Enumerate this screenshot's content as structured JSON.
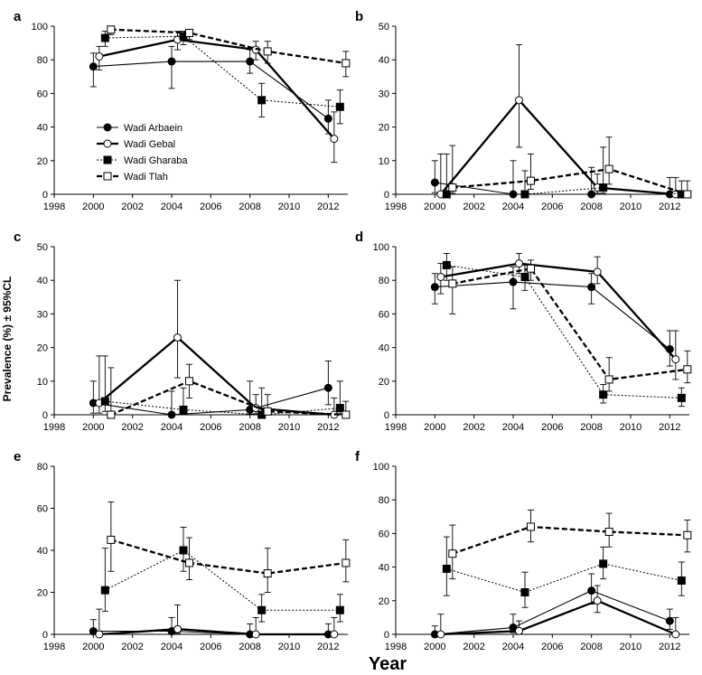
{
  "figure": {
    "ylabel": "Prevalence (%) ± 95%CL",
    "xlabel": "Year"
  },
  "legend": [
    {
      "name": "Wadi Arbaein",
      "marker": "filled-circle",
      "line": "thin-solid"
    },
    {
      "name": "Wadi Gebal",
      "marker": "open-circle",
      "line": "thick-solid"
    },
    {
      "name": "Wadi Gharaba",
      "marker": "filled-square",
      "line": "thin-dotted"
    },
    {
      "name": "Wadi Tlah",
      "marker": "open-square",
      "line": "thick-dashed"
    }
  ],
  "chart_data": [
    {
      "label": "a",
      "type": "line",
      "x_ticks": [
        "1998",
        "2000",
        "2002",
        "2004",
        "2006",
        "2008",
        "2010",
        "2012"
      ],
      "xlim": [
        1998,
        2013
      ],
      "ylim": [
        0,
        100
      ],
      "y_ticks": [
        "0",
        "20",
        "40",
        "60",
        "80",
        "100"
      ],
      "series": [
        {
          "name": "Wadi Arbaein",
          "x": [
            2000,
            2004,
            2008,
            2012
          ],
          "y": [
            76,
            79,
            79,
            45
          ],
          "ylo": [
            64,
            63,
            72,
            36
          ],
          "yhi": [
            84,
            88,
            86,
            56
          ]
        },
        {
          "name": "Wadi Gebal",
          "x": [
            2000.3,
            2004.3,
            2008.3,
            2012.3
          ],
          "y": [
            82,
            92,
            86,
            33
          ],
          "ylo": [
            74,
            86,
            80,
            19
          ],
          "yhi": [
            88,
            97,
            91,
            49
          ]
        },
        {
          "name": "Wadi Gharaba",
          "x": [
            2000.6,
            2004.6,
            2008.6,
            2012.6
          ],
          "y": [
            93,
            94,
            56,
            52
          ],
          "ylo": [
            88,
            89,
            46,
            42
          ],
          "yhi": [
            97,
            97,
            66,
            62
          ]
        },
        {
          "name": "Wadi Tlah",
          "x": [
            2000.9,
            2004.9,
            2008.9,
            2012.9
          ],
          "y": [
            98,
            96,
            85,
            78
          ],
          "ylo": [
            95,
            92,
            78,
            70
          ],
          "yhi": [
            99,
            98,
            91,
            85
          ]
        }
      ]
    },
    {
      "label": "b",
      "type": "line",
      "x_ticks": [
        "1998",
        "2000",
        "2002",
        "2004",
        "2006",
        "2008",
        "2010",
        "2012"
      ],
      "xlim": [
        1998,
        2013
      ],
      "ylim": [
        0,
        50
      ],
      "y_ticks": [
        "0",
        "10",
        "20",
        "30",
        "40",
        "50"
      ],
      "series": [
        {
          "name": "Wadi Arbaein",
          "x": [
            2000,
            2004,
            2008,
            2012
          ],
          "y": [
            3.5,
            0,
            0,
            0
          ],
          "ylo": [
            0.5,
            0,
            0,
            0
          ],
          "yhi": [
            10,
            10,
            8,
            5
          ]
        },
        {
          "name": "Wadi Gebal",
          "x": [
            2000.3,
            2004.3,
            2008.3,
            2012.3
          ],
          "y": [
            0,
            28,
            2,
            0
          ],
          "ylo": [
            0,
            14,
            0.3,
            0
          ],
          "yhi": [
            12,
            44.5,
            6,
            5
          ]
        },
        {
          "name": "Wadi Gharaba",
          "x": [
            2000.6,
            2004.6,
            2008.6,
            2012.6
          ],
          "y": [
            0,
            0,
            2,
            0
          ],
          "ylo": [
            0,
            0,
            0.3,
            0
          ],
          "yhi": [
            12,
            7,
            14,
            4
          ]
        },
        {
          "name": "Wadi Tlah",
          "x": [
            2000.9,
            2004.9,
            2008.9,
            2012.9
          ],
          "y": [
            2,
            4,
            7.5,
            0
          ],
          "ylo": [
            0.3,
            1.5,
            3,
            0
          ],
          "yhi": [
            14.5,
            12,
            17,
            4
          ]
        }
      ]
    },
    {
      "label": "c",
      "type": "line",
      "x_ticks": [
        "1998",
        "2000",
        "2002",
        "2004",
        "2006",
        "2008",
        "2010",
        "2012"
      ],
      "xlim": [
        1998,
        2013
      ],
      "ylim": [
        0,
        50
      ],
      "y_ticks": [
        "0",
        "10",
        "20",
        "30",
        "40",
        "50"
      ],
      "series": [
        {
          "name": "Wadi Arbaein",
          "x": [
            2000,
            2004,
            2008,
            2012
          ],
          "y": [
            3.5,
            0,
            1.5,
            8
          ],
          "ylo": [
            0.5,
            0,
            0.2,
            3
          ],
          "yhi": [
            10,
            7,
            10,
            16
          ]
        },
        {
          "name": "Wadi Gebal",
          "x": [
            2000.3,
            2004.3,
            2008.3,
            2012.3
          ],
          "y": [
            3.5,
            23,
            2,
            0
          ],
          "ylo": [
            0.5,
            11,
            0.3,
            0
          ],
          "yhi": [
            17.5,
            40,
            6,
            5
          ]
        },
        {
          "name": "Wadi Gharaba",
          "x": [
            2000.6,
            2004.6,
            2008.6,
            2012.6
          ],
          "y": [
            4,
            1.5,
            0,
            2
          ],
          "ylo": [
            1,
            0.2,
            0,
            0.3
          ],
          "yhi": [
            17.5,
            8,
            8,
            10
          ]
        },
        {
          "name": "Wadi Tlah",
          "x": [
            2000.9,
            2004.9,
            2008.9,
            2012.9
          ],
          "y": [
            0,
            10,
            1,
            0
          ],
          "ylo": [
            0,
            5,
            0.1,
            0
          ],
          "yhi": [
            14,
            15,
            6,
            4
          ]
        }
      ]
    },
    {
      "label": "d",
      "type": "line",
      "x_ticks": [
        "1998",
        "2000",
        "2002",
        "2004",
        "2006",
        "2008",
        "2010",
        "2012"
      ],
      "xlim": [
        1998,
        2013
      ],
      "ylim": [
        0,
        100
      ],
      "y_ticks": [
        "0",
        "20",
        "40",
        "60",
        "80",
        "100"
      ],
      "series": [
        {
          "name": "Wadi Arbaein",
          "x": [
            2000,
            2004,
            2008,
            2012
          ],
          "y": [
            76,
            79,
            76,
            39
          ],
          "ylo": [
            66,
            63,
            66,
            29
          ],
          "yhi": [
            84,
            88,
            84,
            50
          ]
        },
        {
          "name": "Wadi Gebal",
          "x": [
            2000.3,
            2004.3,
            2008.3,
            2012.3
          ],
          "y": [
            82,
            90,
            85,
            33
          ],
          "ylo": [
            72,
            84,
            78,
            21
          ],
          "yhi": [
            90,
            96,
            94,
            50
          ]
        },
        {
          "name": "Wadi Gharaba",
          "x": [
            2000.6,
            2004.6,
            2008.6,
            2012.6
          ],
          "y": [
            89,
            82,
            12,
            10
          ],
          "ylo": [
            80,
            74,
            7,
            5
          ],
          "yhi": [
            96,
            89,
            18,
            16
          ]
        },
        {
          "name": "Wadi Tlah",
          "x": [
            2000.9,
            2004.9,
            2008.9,
            2012.9
          ],
          "y": [
            78,
            87,
            21,
            27
          ],
          "ylo": [
            60,
            80,
            14,
            19
          ],
          "yhi": [
            88,
            92,
            34,
            38
          ]
        }
      ]
    },
    {
      "label": "e",
      "type": "line",
      "x_ticks": [
        "1998",
        "2000",
        "2002",
        "2004",
        "2006",
        "2008",
        "2010",
        "2012"
      ],
      "xlim": [
        1998,
        2013
      ],
      "ylim": [
        0,
        80
      ],
      "y_ticks": [
        "0",
        "20",
        "40",
        "60",
        "80"
      ],
      "series": [
        {
          "name": "Wadi Arbaein",
          "x": [
            2000,
            2004,
            2008,
            2012
          ],
          "y": [
            1.5,
            1.5,
            0,
            0
          ],
          "ylo": [
            0.2,
            0.2,
            0,
            0
          ],
          "yhi": [
            7,
            8,
            5,
            5
          ]
        },
        {
          "name": "Wadi Gebal",
          "x": [
            2000.3,
            2004.3,
            2008.3,
            2012.3
          ],
          "y": [
            0,
            2.5,
            0,
            0
          ],
          "ylo": [
            0,
            0.5,
            0,
            0
          ],
          "yhi": [
            12,
            14,
            8,
            8
          ]
        },
        {
          "name": "Wadi Gharaba",
          "x": [
            2000.6,
            2004.6,
            2008.6,
            2012.6
          ],
          "y": [
            21,
            40,
            11.5,
            11.5
          ],
          "ylo": [
            11,
            30,
            6,
            6
          ],
          "yhi": [
            41,
            51,
            19,
            19
          ]
        },
        {
          "name": "Wadi Tlah",
          "x": [
            2000.9,
            2004.9,
            2008.9,
            2012.9
          ],
          "y": [
            45,
            34,
            29,
            34
          ],
          "ylo": [
            30,
            26,
            20,
            25
          ],
          "yhi": [
            63,
            46,
            41,
            45
          ]
        }
      ]
    },
    {
      "label": "f",
      "type": "line",
      "x_ticks": [
        "1998",
        "2000",
        "2002",
        "2004",
        "2006",
        "2008",
        "2010",
        "2012"
      ],
      "xlim": [
        1998,
        2013
      ],
      "ylim": [
        0,
        100
      ],
      "y_ticks": [
        "0",
        "20",
        "40",
        "60",
        "80",
        "100"
      ],
      "series": [
        {
          "name": "Wadi Arbaein",
          "x": [
            2000,
            2004,
            2008,
            2012
          ],
          "y": [
            0,
            4,
            26,
            8
          ],
          "ylo": [
            0,
            1,
            18,
            3
          ],
          "yhi": [
            5,
            12,
            36,
            15
          ]
        },
        {
          "name": "Wadi Gebal",
          "x": [
            2000.3,
            2004.3,
            2008.3,
            2012.3
          ],
          "y": [
            0,
            2,
            20,
            0
          ],
          "ylo": [
            0,
            0.3,
            13,
            0
          ],
          "yhi": [
            12,
            8,
            29,
            10
          ]
        },
        {
          "name": "Wadi Gharaba",
          "x": [
            2000.6,
            2004.6,
            2008.6,
            2012.6
          ],
          "y": [
            39,
            25,
            42,
            32
          ],
          "ylo": [
            23,
            16,
            33,
            23
          ],
          "yhi": [
            58,
            37,
            52,
            43
          ]
        },
        {
          "name": "Wadi Tlah",
          "x": [
            2000.9,
            2004.9,
            2008.9,
            2012.9
          ],
          "y": [
            48,
            64,
            61,
            59
          ],
          "ylo": [
            33,
            55,
            52,
            49
          ],
          "yhi": [
            65,
            74,
            72,
            68
          ]
        }
      ]
    }
  ]
}
